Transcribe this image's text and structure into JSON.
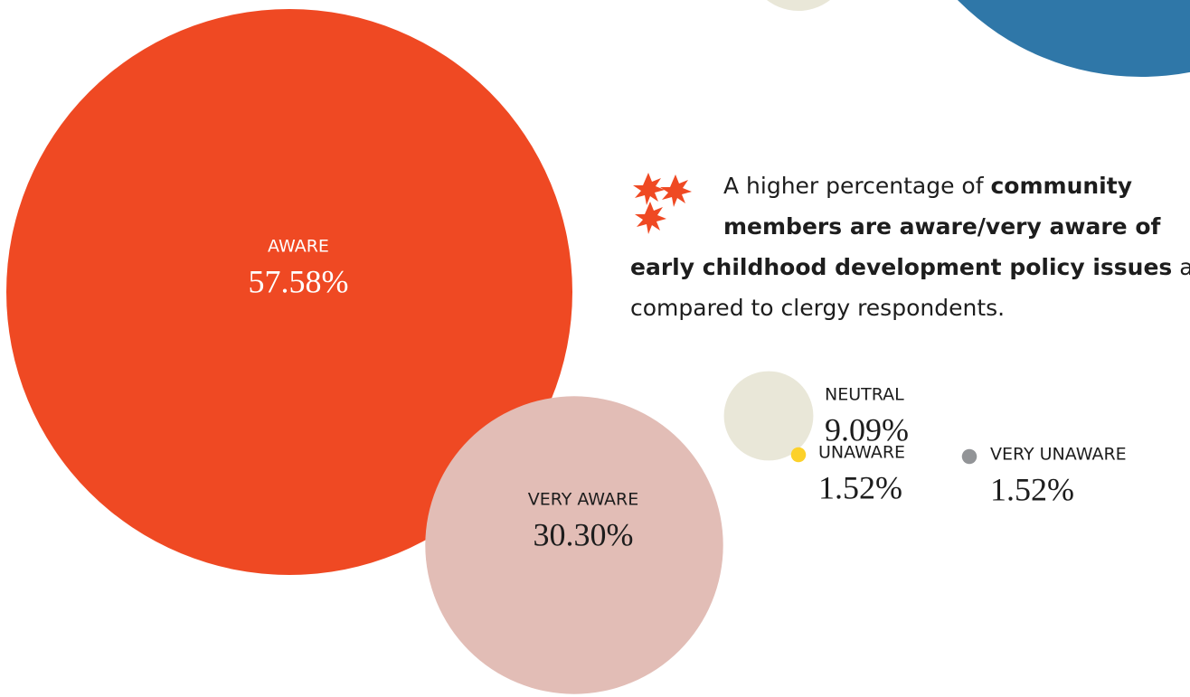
{
  "chart_data": {
    "type": "bubble",
    "categories": [
      "AWARE",
      "VERY AWARE",
      "NEUTRAL",
      "UNAWARE",
      "VERY UNAWARE"
    ],
    "values": [
      57.58,
      30.3,
      9.09,
      1.52,
      1.52
    ],
    "value_labels": [
      "57.58%",
      "30.30%",
      "9.09%",
      "1.52%",
      "1.52%"
    ],
    "colors": [
      "#ef4923",
      "#e2bdb6",
      "#e9e7d8",
      "#fcd12a",
      "#929497"
    ],
    "annotation": [
      "A higher percentage of ",
      "community members are aware/very aware of early childhood development policy issues",
      " as compared to clergy respondents."
    ]
  }
}
